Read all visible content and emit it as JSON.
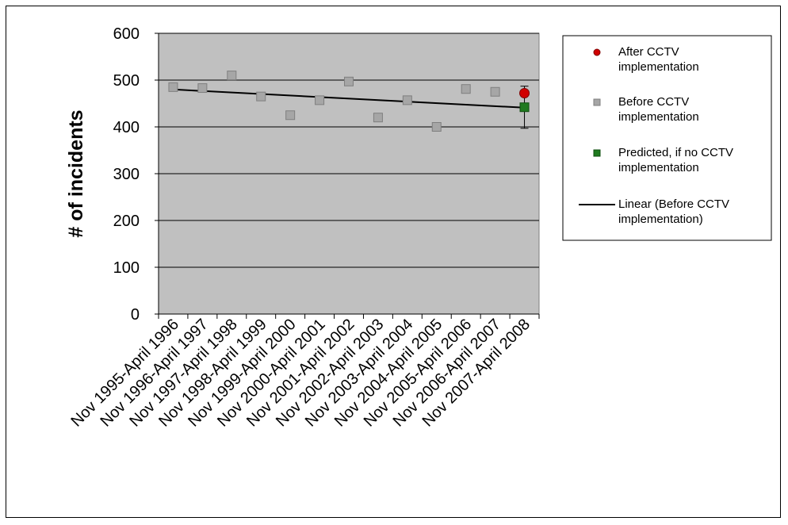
{
  "chart_data": {
    "type": "scatter",
    "title": "",
    "xlabel": "",
    "ylabel": "# of incidents",
    "ylim": [
      0,
      600
    ],
    "yticks": [
      0,
      100,
      200,
      300,
      400,
      500,
      600
    ],
    "grid": true,
    "legend_position": "right",
    "plot_background": "#c0c0c0",
    "categories": [
      "Nov 1995-April 1996",
      "Nov 1996-April 1997",
      "Nov 1997-April 1998",
      "Nov 1998-April 1999",
      "Nov 1999-April 2000",
      "Nov 2000-April 2001",
      "Nov 2001-April 2002",
      "Nov 2002-April 2003",
      "Nov 2003-April 2004",
      "Nov 2004-April 2005",
      "Nov 2005-April 2006",
      "Nov 2006-April 2007",
      "Nov 2007-April 2008"
    ],
    "series": [
      {
        "name": "After CCTV implementation",
        "marker": "circle",
        "color": "#d00000",
        "points": [
          {
            "category": "Nov 2007-April 2008",
            "value": 472
          }
        ]
      },
      {
        "name": "Before CCTV implementation",
        "marker": "square",
        "color": "#a6a6a6",
        "values": [
          485,
          483,
          510,
          465,
          425,
          457,
          497,
          420,
          457,
          400,
          481,
          475,
          null
        ]
      },
      {
        "name": "Predicted, if no CCTV implementation",
        "marker": "square",
        "color": "#1f7a1f",
        "points": [
          {
            "category": "Nov 2007-April 2008",
            "value": 442,
            "error_low": 397,
            "error_high": 487
          }
        ]
      },
      {
        "name": "Linear (Before CCTV implementation)",
        "type": "trendline",
        "color": "#000000",
        "start": {
          "category": "Nov 1995-April 1996",
          "value": 480
        },
        "end": {
          "category": "Nov 2007-April 2008",
          "value": 441
        }
      }
    ],
    "legend": [
      "After CCTV implementation",
      "Before CCTV implementation",
      "Predicted, if no CCTV implementation",
      "Linear (Before CCTV implementation)"
    ]
  }
}
